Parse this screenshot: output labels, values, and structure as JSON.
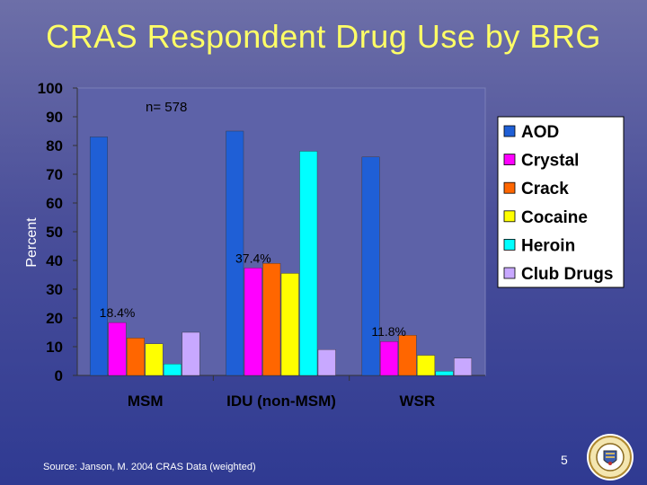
{
  "slide": {
    "title": "CRAS Respondent Drug Use by BRG",
    "source": "Source: Janson, M. 2004 CRAS Data (weighted)",
    "page_number": "5",
    "seal_icon": "county-seal-icon"
  },
  "chart_data": {
    "type": "bar",
    "ylabel": "Percent",
    "xlabel": "",
    "ylim": [
      0,
      100
    ],
    "yticks": [
      0,
      10,
      20,
      30,
      40,
      50,
      60,
      70,
      80,
      90,
      100
    ],
    "categories": [
      "MSM",
      "IDU (non-MSM)",
      "WSR"
    ],
    "annotation": "n= 578",
    "legend_position": "right",
    "grid": false,
    "series": [
      {
        "name": "AOD",
        "color": "#1f5fd6",
        "values": [
          83,
          85,
          76
        ]
      },
      {
        "name": "Crystal",
        "color": "#ff00ff",
        "values": [
          18.4,
          37.4,
          11.8
        ]
      },
      {
        "name": "Crack",
        "color": "#ff6600",
        "values": [
          13,
          39,
          14
        ]
      },
      {
        "name": "Cocaine",
        "color": "#ffff00",
        "values": [
          11,
          35.5,
          7
        ]
      },
      {
        "name": "Heroin",
        "color": "#00ffff",
        "values": [
          4,
          78,
          1.5
        ]
      },
      {
        "name": "Club Drugs",
        "color": "#c8a8ff",
        "values": [
          15,
          9,
          6
        ]
      }
    ],
    "data_labels": [
      {
        "text": "18.4%",
        "category": 0,
        "series": 1
      },
      {
        "text": "37.4%",
        "category": 1,
        "series": 1
      },
      {
        "text": "11.8%",
        "category": 2,
        "series": 1
      }
    ]
  }
}
